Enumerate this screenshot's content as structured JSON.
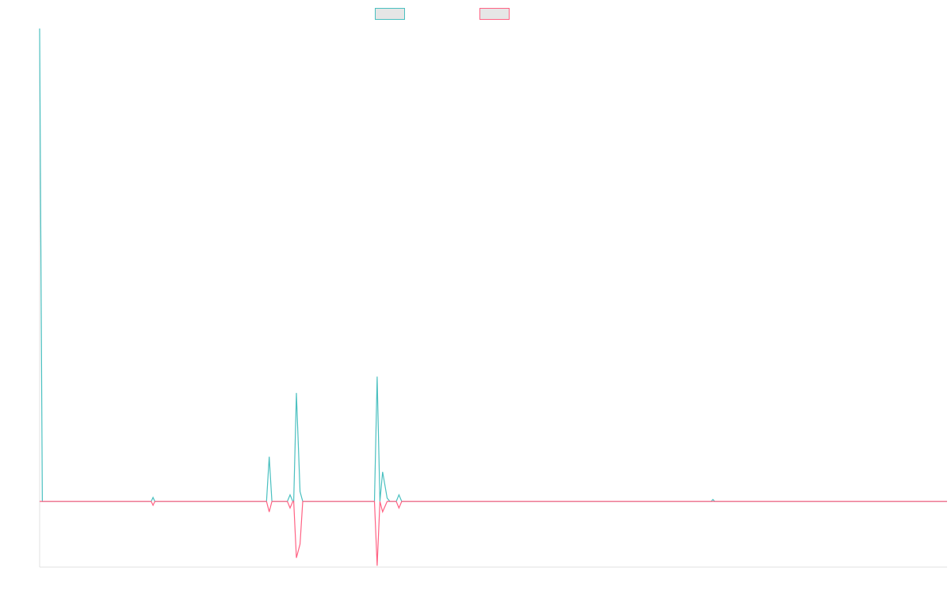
{
  "chart_data": {
    "type": "line",
    "title": "",
    "xlabel": "",
    "ylabel": "",
    "legend_position": "top-center",
    "grid": false,
    "xlim": [
      0,
      100
    ],
    "ylim": [
      -10,
      72
    ],
    "series": [
      {
        "name": "",
        "color": "#4bc0c0",
        "points": [
          [
            0,
            72
          ],
          [
            0.3,
            0
          ],
          [
            12.3,
            0
          ],
          [
            12.5,
            0.6
          ],
          [
            12.7,
            0
          ],
          [
            25.0,
            0
          ],
          [
            25.3,
            6.8
          ],
          [
            25.6,
            0
          ],
          [
            27.3,
            0
          ],
          [
            27.6,
            1.0
          ],
          [
            27.9,
            0
          ],
          [
            28.0,
            0
          ],
          [
            28.3,
            16.5
          ],
          [
            28.7,
            1.5
          ],
          [
            29.0,
            0
          ],
          [
            36.9,
            0
          ],
          [
            37.2,
            19.0
          ],
          [
            37.5,
            0
          ],
          [
            37.8,
            4.5
          ],
          [
            38.3,
            0.5
          ],
          [
            38.6,
            0
          ],
          [
            39.3,
            0
          ],
          [
            39.6,
            1.0
          ],
          [
            39.9,
            0
          ],
          [
            74.0,
            0
          ],
          [
            74.2,
            0.3
          ],
          [
            74.4,
            0
          ],
          [
            100,
            0
          ]
        ]
      },
      {
        "name": "",
        "color": "#ff6384",
        "points": [
          [
            0,
            0
          ],
          [
            12.3,
            0
          ],
          [
            12.5,
            -0.6
          ],
          [
            12.7,
            0
          ],
          [
            25.0,
            0
          ],
          [
            25.3,
            -1.6
          ],
          [
            25.6,
            0
          ],
          [
            27.3,
            0
          ],
          [
            27.6,
            -1.0
          ],
          [
            27.9,
            0
          ],
          [
            28.0,
            0
          ],
          [
            28.3,
            -8.6
          ],
          [
            28.7,
            -6.5
          ],
          [
            29.0,
            0
          ],
          [
            36.9,
            0
          ],
          [
            37.2,
            -9.8
          ],
          [
            37.5,
            0
          ],
          [
            37.8,
            -1.6
          ],
          [
            38.3,
            0
          ],
          [
            39.3,
            0
          ],
          [
            39.6,
            -1.0
          ],
          [
            39.9,
            0
          ],
          [
            100,
            0
          ]
        ]
      }
    ]
  }
}
